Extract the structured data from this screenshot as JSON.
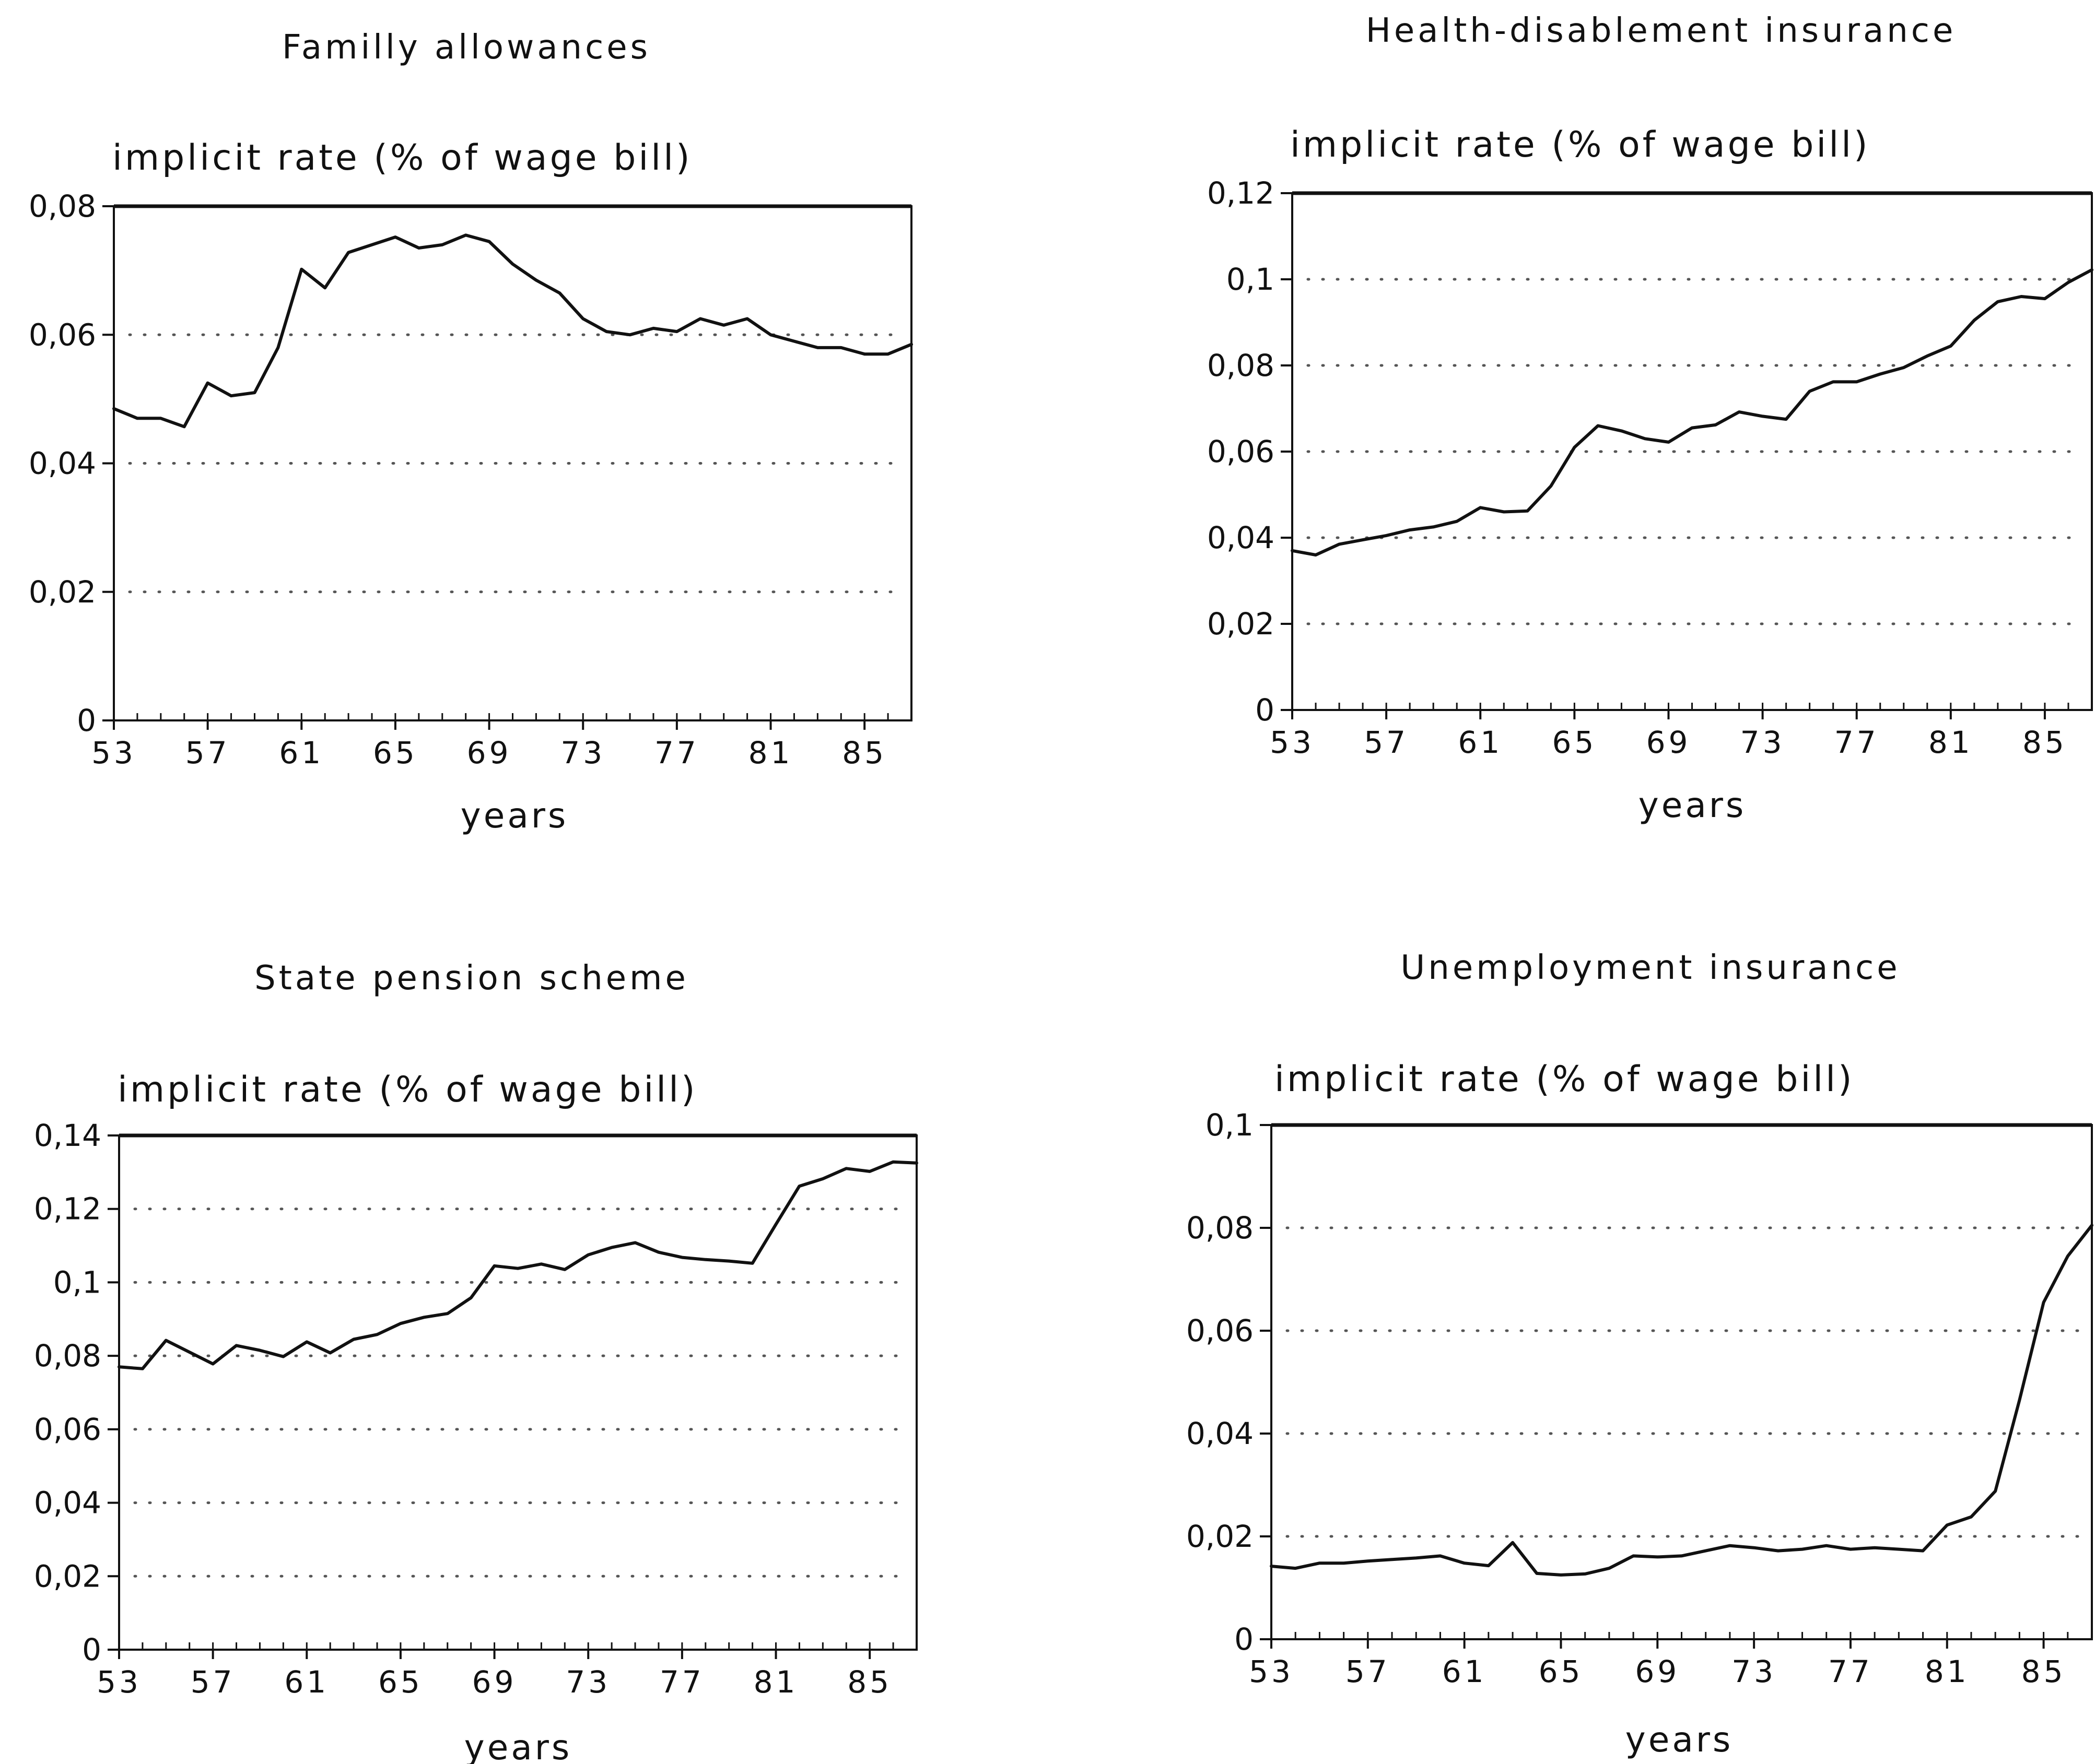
{
  "page": {
    "ink_color": "#111111",
    "grid_color": "#555555",
    "background": "#ffffff"
  },
  "chart_data": [
    {
      "type": "line",
      "title": "Familly allowances",
      "ylabel": "implicit rate (% of wage bill)",
      "xlabel": "years",
      "xlim": [
        53,
        87
      ],
      "ylim": [
        0,
        0.08
      ],
      "xticks": [
        53,
        57,
        61,
        65,
        69,
        73,
        77,
        81,
        85
      ],
      "xtick_labels": [
        "53",
        "57",
        "61",
        "65",
        "69",
        "73",
        "77",
        "81",
        "85"
      ],
      "yticks": [
        0,
        0.02,
        0.04,
        0.06,
        0.08
      ],
      "ytick_labels": [
        "0",
        "0,02",
        "0,04",
        "0,06",
        "0,08"
      ],
      "grid": "dotted horizontal",
      "series": [
        {
          "x": [
            53,
            54,
            55,
            56,
            57,
            58,
            59,
            60,
            61,
            62,
            63,
            64,
            65,
            66,
            67,
            68,
            69,
            70,
            71,
            72,
            73,
            74,
            75,
            76,
            77,
            78,
            79,
            80,
            81,
            82,
            83,
            84,
            85,
            86,
            87
          ],
          "values": [
            0.0485,
            0.047,
            0.047,
            0.0457,
            0.0525,
            0.0505,
            0.051,
            0.058,
            0.0702,
            0.0673,
            0.0728,
            0.074,
            0.0752,
            0.0735,
            0.074,
            0.0755,
            0.0745,
            0.071,
            0.0685,
            0.0665,
            0.0625,
            0.0605,
            0.06,
            0.061,
            0.0605,
            0.0625,
            0.0615,
            0.0625,
            0.06,
            0.059,
            0.058,
            0.058,
            0.057,
            0.057,
            0.0585
          ]
        }
      ]
    },
    {
      "type": "line",
      "title": "Health-disablement insurance",
      "ylabel": "implicit rate (% of wage bill)",
      "xlabel": "years",
      "xlim": [
        53,
        87
      ],
      "ylim": [
        0,
        0.12
      ],
      "xticks": [
        53,
        57,
        61,
        65,
        69,
        73,
        77,
        81,
        85
      ],
      "xtick_labels": [
        "53",
        "57",
        "61",
        "65",
        "69",
        "73",
        "77",
        "81",
        "85"
      ],
      "yticks": [
        0,
        0.02,
        0.04,
        0.06,
        0.08,
        0.1,
        0.12
      ],
      "ytick_labels": [
        "0",
        "0,02",
        "0,04",
        "0,06",
        "0,08",
        "0,1",
        "0,12"
      ],
      "grid": "dotted horizontal",
      "series": [
        {
          "x": [
            53,
            54,
            55,
            56,
            57,
            58,
            59,
            60,
            61,
            62,
            63,
            64,
            65,
            66,
            67,
            68,
            69,
            70,
            71,
            72,
            73,
            74,
            75,
            76,
            77,
            78,
            79,
            80,
            81,
            82,
            83,
            84,
            85,
            86,
            87
          ],
          "values": [
            0.037,
            0.036,
            0.0385,
            0.0395,
            0.0405,
            0.0418,
            0.0425,
            0.0438,
            0.047,
            0.046,
            0.0462,
            0.052,
            0.061,
            0.066,
            0.0648,
            0.063,
            0.0622,
            0.0655,
            0.0662,
            0.0692,
            0.0682,
            0.0675,
            0.074,
            0.0762,
            0.0762,
            0.078,
            0.0795,
            0.0822,
            0.0845,
            0.0905,
            0.0948,
            0.096,
            0.0955,
            0.0993,
            0.1022
          ]
        }
      ]
    },
    {
      "type": "line",
      "title": "State pension scheme",
      "ylabel": "implicit rate (% of wage bill)",
      "xlabel": "years",
      "xlim": [
        53,
        87
      ],
      "ylim": [
        0,
        0.14
      ],
      "xticks": [
        53,
        57,
        61,
        65,
        69,
        73,
        77,
        81,
        85
      ],
      "xtick_labels": [
        "53",
        "57",
        "61",
        "65",
        "69",
        "73",
        "77",
        "81",
        "85"
      ],
      "yticks": [
        0,
        0.02,
        0.04,
        0.06,
        0.08,
        0.1,
        0.12,
        0.14
      ],
      "ytick_labels": [
        "0",
        "0,02",
        "0,04",
        "0,06",
        "0,08",
        "0,1",
        "0,12",
        "0,14"
      ],
      "grid": "dotted horizontal",
      "series": [
        {
          "x": [
            53,
            54,
            55,
            56,
            57,
            58,
            59,
            60,
            61,
            62,
            63,
            64,
            65,
            66,
            67,
            68,
            69,
            70,
            71,
            72,
            73,
            74,
            75,
            76,
            77,
            78,
            79,
            80,
            81,
            82,
            83,
            84,
            85,
            86,
            87
          ],
          "values": [
            0.077,
            0.0765,
            0.0842,
            0.081,
            0.0778,
            0.0828,
            0.0815,
            0.0798,
            0.0838,
            0.0808,
            0.0845,
            0.0858,
            0.0888,
            0.0905,
            0.0915,
            0.0958,
            0.1045,
            0.1038,
            0.105,
            0.1035,
            0.1075,
            0.1095,
            0.1108,
            0.1082,
            0.1068,
            0.1062,
            0.1058,
            0.1052,
            0.1158,
            0.1262,
            0.1282,
            0.131,
            0.1302,
            0.1328,
            0.1325
          ]
        }
      ]
    },
    {
      "type": "line",
      "title": "Unemployment insurance",
      "ylabel": "implicit rate (% of wage bill)",
      "xlabel": "years",
      "xlim": [
        53,
        87
      ],
      "ylim": [
        0,
        0.1
      ],
      "xticks": [
        53,
        57,
        61,
        65,
        69,
        73,
        77,
        81,
        85
      ],
      "xtick_labels": [
        "53",
        "57",
        "61",
        "65",
        "69",
        "73",
        "77",
        "81",
        "85"
      ],
      "yticks": [
        0,
        0.02,
        0.04,
        0.06,
        0.08,
        0.1
      ],
      "ytick_labels": [
        "0",
        "0,02",
        "0,04",
        "0,06",
        "0,08",
        "0,1"
      ],
      "grid": "dotted horizontal",
      "series": [
        {
          "x": [
            53,
            54,
            55,
            56,
            57,
            58,
            59,
            60,
            61,
            62,
            63,
            64,
            65,
            66,
            67,
            68,
            69,
            70,
            71,
            72,
            73,
            74,
            75,
            76,
            77,
            78,
            79,
            80,
            81,
            82,
            83,
            84,
            85,
            86,
            87
          ],
          "values": [
            0.0142,
            0.0138,
            0.0148,
            0.0148,
            0.0152,
            0.0155,
            0.0158,
            0.0162,
            0.0148,
            0.0143,
            0.0188,
            0.0128,
            0.0125,
            0.0127,
            0.0138,
            0.0162,
            0.016,
            0.0162,
            0.0172,
            0.0182,
            0.0178,
            0.0172,
            0.0175,
            0.0182,
            0.0175,
            0.0178,
            0.0175,
            0.0172,
            0.0222,
            0.0238,
            0.0288,
            0.0465,
            0.0655,
            0.0745,
            0.0805
          ]
        }
      ]
    }
  ]
}
